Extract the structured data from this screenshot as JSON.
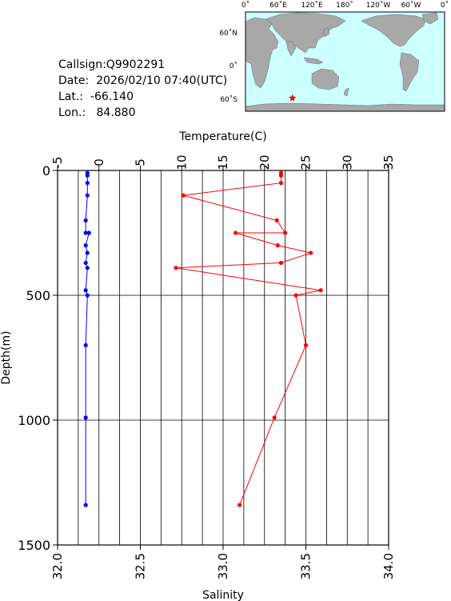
{
  "info": {
    "callsign": "Callsign:Q9902291",
    "date": "Date:  2026/02/10 07:40(UTC)",
    "lat": "Lat.:  -66.140",
    "lon": "Lon.:   84.880"
  },
  "map": {
    "top_labels": [
      "0˚",
      "60˚E",
      "120˚E",
      "180˚",
      "120˚W",
      "60˚W",
      "0˚"
    ],
    "side_labels": [
      "60˚N",
      "0˚",
      "60˚S"
    ],
    "ocean_color": "#ccffff",
    "land_color": "#a8a8a8",
    "marker_color": "#ff0000",
    "marker_icon": "star-icon",
    "station": {
      "lat": -66.14,
      "lon": 84.88
    }
  },
  "chart_data": {
    "type": "line",
    "title": "",
    "top_axis_label": "Temperature(C)",
    "bottom_axis_label": "Salinity",
    "ylabel": "Depth(m)",
    "temperature_range": [
      -5,
      35
    ],
    "temperature_ticks": [
      "-5",
      "0",
      "5",
      "10",
      "15",
      "20",
      "25",
      "30",
      "35"
    ],
    "salinity_range": [
      32.0,
      34.0
    ],
    "salinity_ticks": [
      "32.0",
      "32.5",
      "33.0",
      "33.5",
      "34.0"
    ],
    "depth_range": [
      0,
      1500
    ],
    "depth_ticks": [
      "0",
      "500",
      "1000",
      "1500"
    ],
    "y_inverted": true,
    "grid": true,
    "series": [
      {
        "axis": "temperature",
        "color": "#ff0000",
        "points": [
          [
            22.0,
            10
          ],
          [
            22.0,
            20
          ],
          [
            22.0,
            50
          ],
          [
            10.2,
            100
          ],
          [
            21.5,
            200
          ],
          [
            22.5,
            250
          ],
          [
            16.5,
            250
          ],
          [
            21.6,
            300
          ],
          [
            25.6,
            330
          ],
          [
            22.0,
            370
          ],
          [
            9.3,
            390
          ],
          [
            26.8,
            480
          ],
          [
            23.8,
            500
          ],
          [
            25.0,
            700
          ],
          [
            21.2,
            990
          ],
          [
            17.0,
            1340
          ]
        ]
      },
      {
        "axis": "salinity",
        "color": "#0000ff",
        "points": [
          [
            32.18,
            10
          ],
          [
            32.18,
            20
          ],
          [
            32.18,
            50
          ],
          [
            32.18,
            100
          ],
          [
            32.17,
            200
          ],
          [
            32.17,
            250
          ],
          [
            32.19,
            250
          ],
          [
            32.17,
            300
          ],
          [
            32.18,
            330
          ],
          [
            32.17,
            370
          ],
          [
            32.18,
            390
          ],
          [
            32.17,
            480
          ],
          [
            32.18,
            500
          ],
          [
            32.17,
            700
          ],
          [
            32.17,
            990
          ],
          [
            32.17,
            1340
          ]
        ]
      }
    ]
  }
}
